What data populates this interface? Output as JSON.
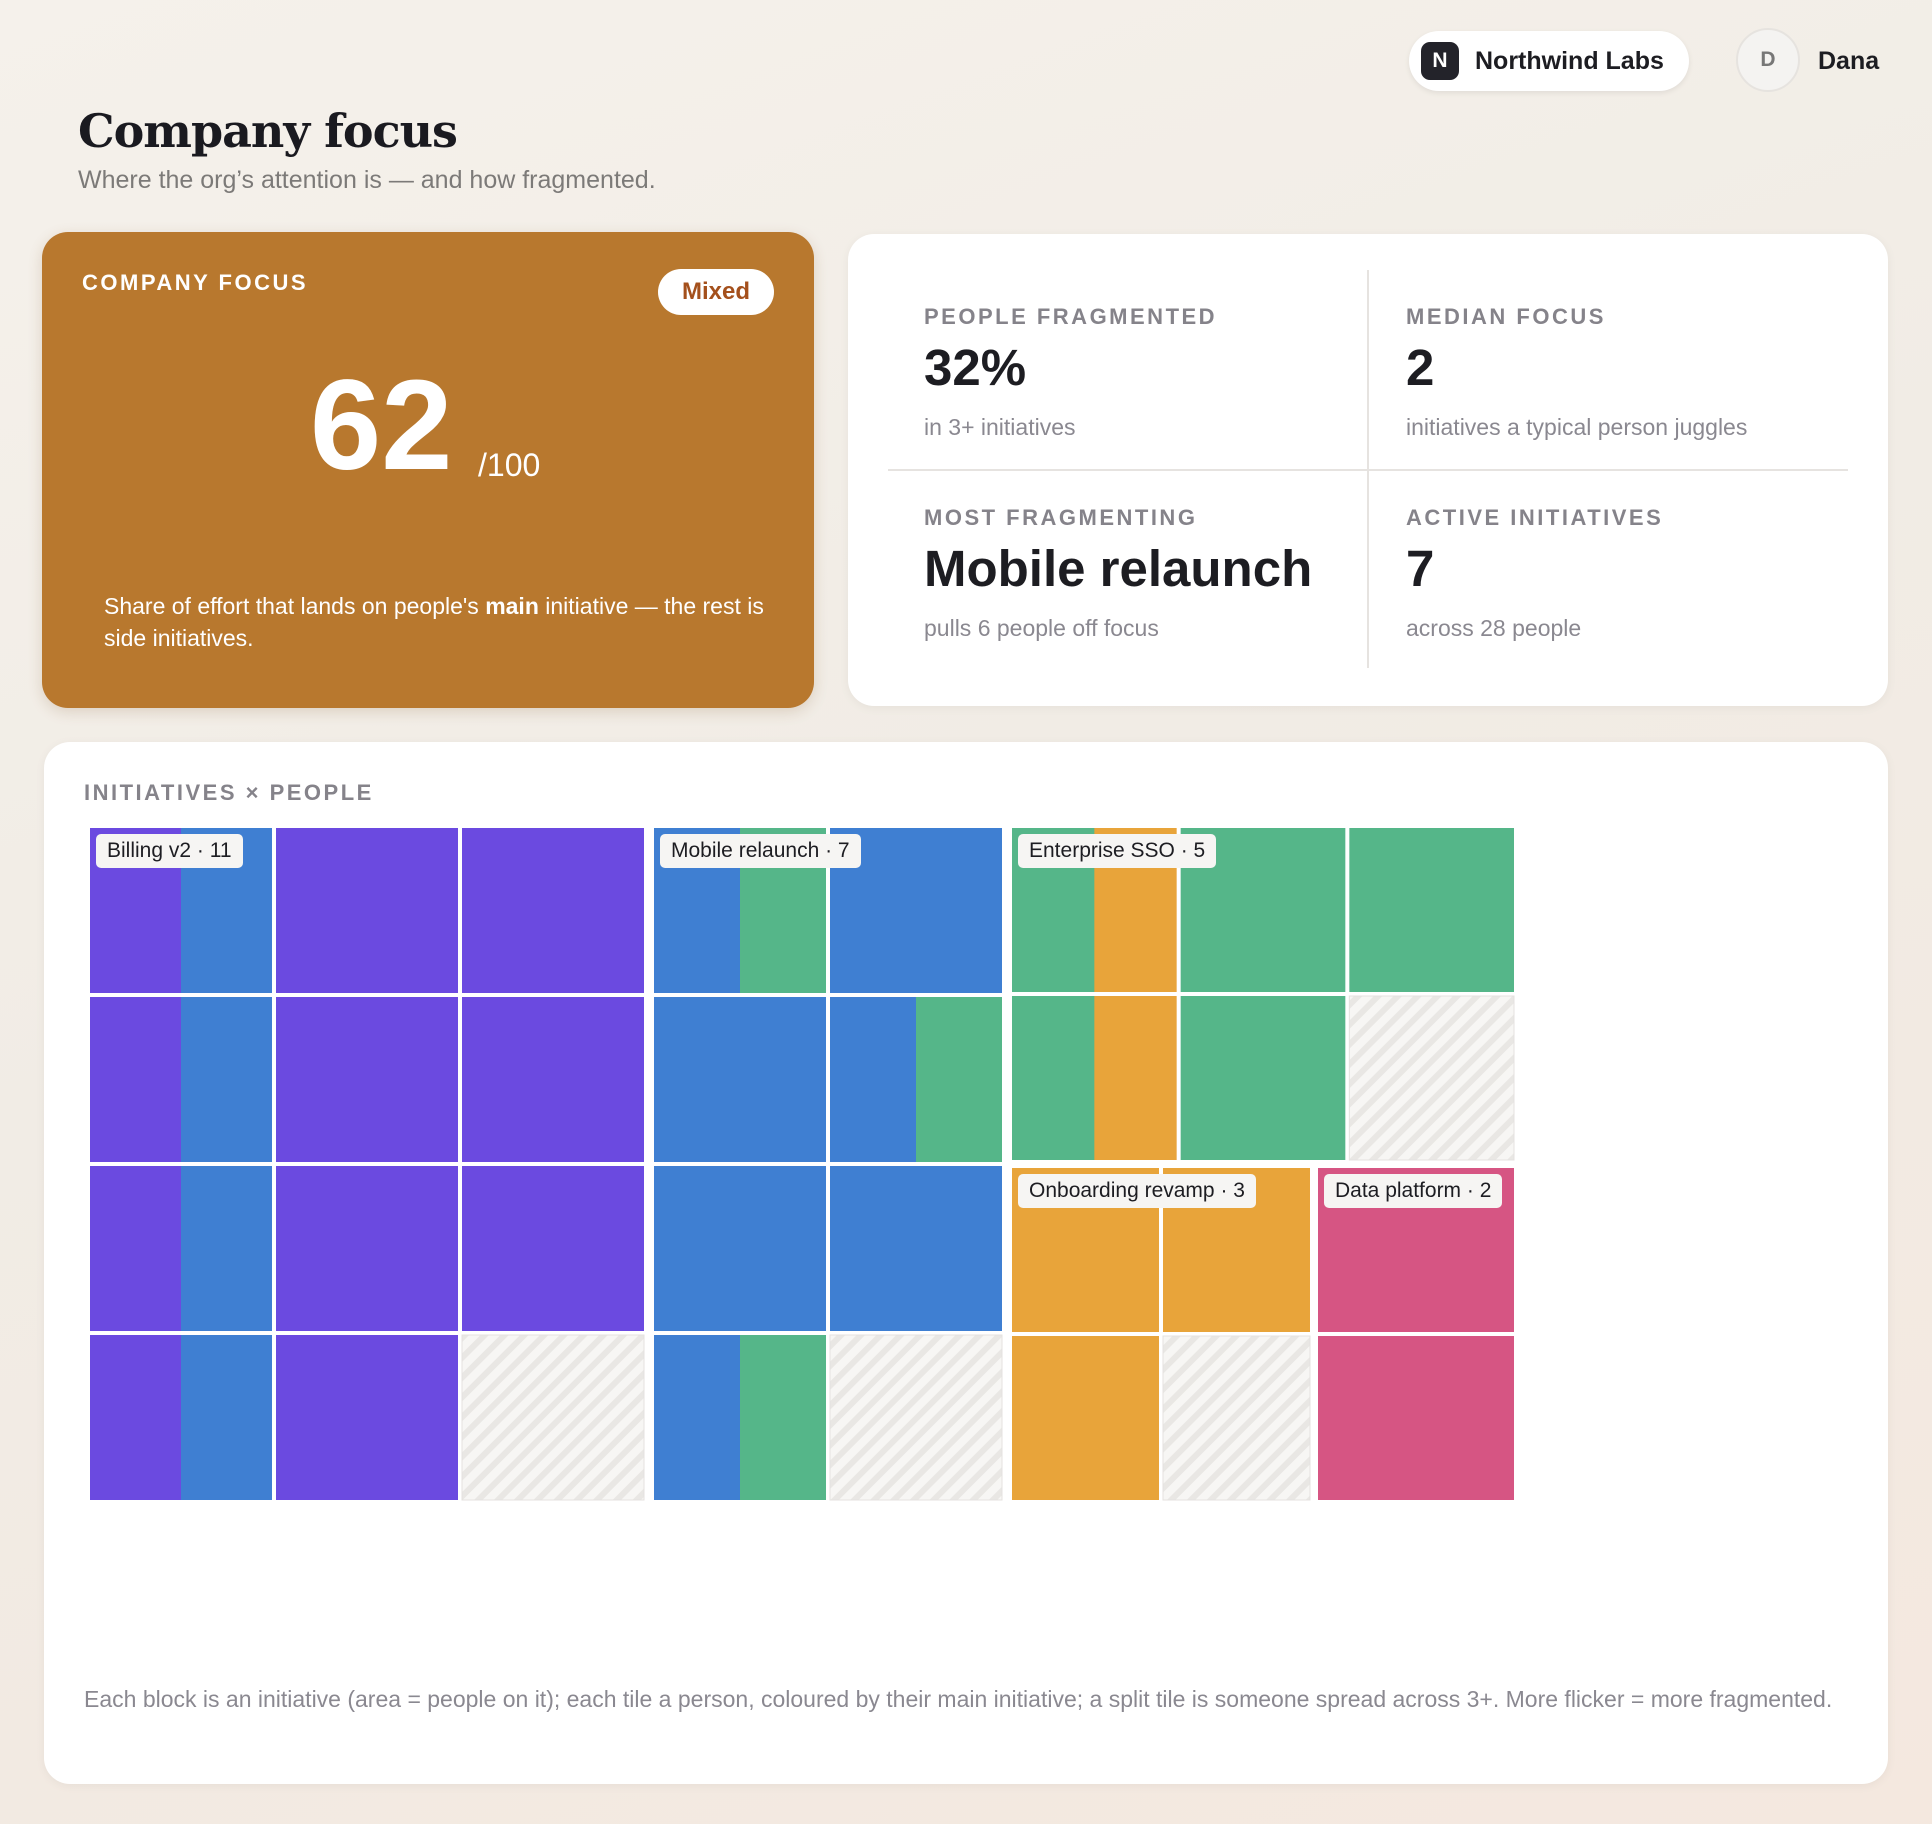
{
  "header": {
    "org": {
      "logo_letter": "N",
      "name": "Northwind Labs"
    },
    "user": {
      "initial": "D",
      "name": "Dana"
    }
  },
  "page": {
    "title": "Company focus",
    "subtitle": "Where the org’s attention is — and how fragmented."
  },
  "focus_card": {
    "label": "COMPANY FOCUS",
    "badge": "Mixed",
    "score": "62",
    "score_max": "/100",
    "desc_prefix": "Share of effort that lands on people's ",
    "desc_bold": "main",
    "desc_suffix": " initiative — the rest is side initiatives.",
    "color": "#b8782e"
  },
  "stats": {
    "people_fragmented": {
      "label": "PEOPLE FRAGMENTED",
      "value": "32%",
      "sub": "in 3+ initiatives"
    },
    "median_focus": {
      "label": "MEDIAN FOCUS",
      "value": "2",
      "sub": "initiatives a typical person juggles"
    },
    "most_fragmenting": {
      "label": "MOST FRAGMENTING",
      "value": "Mobile relaunch",
      "sub": "pulls 6 people off focus"
    },
    "active_initiatives": {
      "label": "ACTIVE INITIATIVES",
      "value": "7",
      "sub": "across 28 people"
    }
  },
  "grid": {
    "label": "INITIATIVES × PEOPLE",
    "footnote": "Each block is an initiative (area = people on it); each tile a person, coloured by their main initiative; a split tile is someone spread across 3+. More flicker = more fragmented.",
    "colors": {
      "purple": "#6b4ae0",
      "blue": "#3f7fd2",
      "green": "#55b689",
      "orange": "#e8a43a",
      "pink": "#d65583",
      "empty": "#f1f0ee"
    },
    "blocks": [
      {
        "name": "Billing v2",
        "count": 11,
        "tag": "Billing v2 · 11",
        "rows": [
          [
            [
              "purple",
              "blue"
            ],
            [
              "purple"
            ],
            [
              "purple"
            ]
          ],
          [
            [
              "purple",
              "blue"
            ],
            [
              "purple"
            ],
            [
              "purple"
            ]
          ],
          [
            [
              "purple",
              "blue"
            ],
            [
              "purple"
            ],
            [
              "purple"
            ]
          ],
          [
            [
              "purple",
              "blue"
            ],
            [
              "purple"
            ],
            null
          ]
        ]
      },
      {
        "name": "Mobile relaunch",
        "count": 7,
        "tag": "Mobile relaunch · 7",
        "rows": [
          [
            [
              "blue",
              "green"
            ],
            [
              "blue"
            ]
          ],
          [
            [
              "blue"
            ],
            [
              "blue",
              "green"
            ]
          ],
          [
            [
              "blue"
            ],
            [
              "blue"
            ]
          ],
          [
            [
              "blue",
              "green"
            ],
            null
          ]
        ]
      },
      {
        "name": "Enterprise SSO",
        "count": 5,
        "tag": "Enterprise SSO · 5",
        "rows": [
          [
            [
              "green",
              "orange"
            ],
            [
              "green"
            ],
            [
              "green"
            ]
          ],
          [
            [
              "green",
              "orange"
            ],
            [
              "green"
            ],
            null
          ]
        ]
      },
      {
        "name": "Onboarding revamp",
        "count": 3,
        "tag": "Onboarding revamp · 3",
        "rows": [
          [
            [
              "orange"
            ],
            [
              "orange"
            ]
          ],
          [
            [
              "orange"
            ],
            null
          ]
        ]
      },
      {
        "name": "Data platform",
        "count": 2,
        "tag": "Data platform · 2",
        "rows": [
          [
            [
              "pink"
            ]
          ],
          [
            [
              "pink"
            ]
          ]
        ]
      }
    ]
  }
}
